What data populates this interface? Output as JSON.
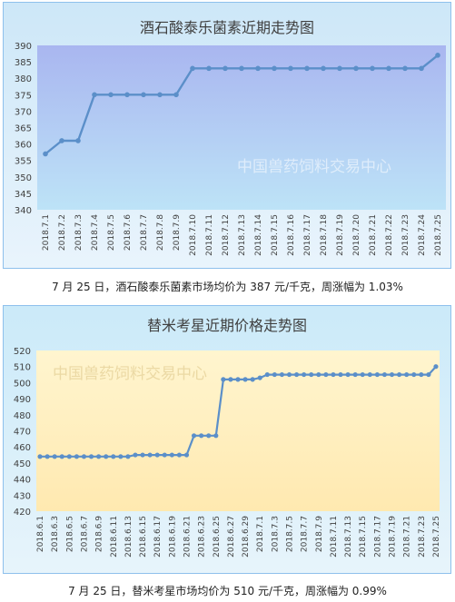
{
  "colors": {
    "line": "#5b8fc9",
    "border": "#8ec0ec",
    "watermark": "#ffffff",
    "watermark2": "#e6d29a",
    "panel1_bg_top": "#cde7f8",
    "panel1_bg_bottom": "#e9f4fc",
    "plot1_top": "#a9b6f0",
    "plot1_bottom": "#bde3f7",
    "panel2_bg_top": "#cbeaf9",
    "panel2_bg_bottom": "#e7f4fb",
    "plot2_top": "#fff5cf",
    "plot2_bottom": "#ffe9b0"
  },
  "chart_data": [
    {
      "type": "line",
      "title": "酒石酸泰乐菌素近期走势图",
      "watermark": "中国兽药饲料交易中心",
      "xlabel": "",
      "ylabel": "",
      "ylim": [
        340,
        390
      ],
      "yticks": [
        340,
        345,
        350,
        355,
        360,
        365,
        370,
        375,
        380,
        385,
        390
      ],
      "grid": false,
      "categories": [
        "2018.7.1",
        "2018.7.2",
        "2018.7.3",
        "2018.7.4",
        "2018.7.5",
        "2018.7.6",
        "2018.7.7",
        "2018.7.8",
        "2018.7.9",
        "2018.7.10",
        "2018.7.11",
        "2018.7.12",
        "2018.7.13",
        "2018.7.14",
        "2018.7.15",
        "2018.7.16",
        "2018.7.17",
        "2018.7.18",
        "2018.7.19",
        "2018.7.20",
        "2018.7.21",
        "2018.7.22",
        "2018.7.23",
        "2018.7.24",
        "2018.7.25"
      ],
      "values": [
        357,
        361,
        361,
        375,
        375,
        375,
        375,
        375,
        375,
        383,
        383,
        383,
        383,
        383,
        383,
        383,
        383,
        383,
        383,
        383,
        383,
        383,
        383,
        383,
        387
      ]
    },
    {
      "type": "line",
      "title": "替米考星近期价格走势图",
      "watermark": "中国兽药饲料交易中心",
      "xlabel": "",
      "ylabel": "",
      "ylim": [
        420,
        520
      ],
      "yticks": [
        420,
        430,
        440,
        450,
        460,
        470,
        480,
        490,
        500,
        510,
        520
      ],
      "grid": false,
      "categories": [
        "2018.6.1",
        "2018.6.2",
        "2018.6.3",
        "2018.6.4",
        "2018.6.5",
        "2018.6.6",
        "2018.6.7",
        "2018.6.8",
        "2018.6.9",
        "2018.6.10",
        "2018.6.11",
        "2018.6.12",
        "2018.6.13",
        "2018.6.14",
        "2018.6.15",
        "2018.6.16",
        "2018.6.17",
        "2018.6.18",
        "2018.6.19",
        "2018.6.20",
        "2018.6.21",
        "2018.6.22",
        "2018.6.23",
        "2018.6.24",
        "2018.6.25",
        "2018.6.26",
        "2018.6.27",
        "2018.6.28",
        "2018.6.29",
        "2018.6.30",
        "2018.7.1",
        "2018.7.2",
        "2018.7.3",
        "2018.7.4",
        "2018.7.5",
        "2018.7.6",
        "2018.7.7",
        "2018.7.8",
        "2018.7.9",
        "2018.7.10",
        "2018.7.11",
        "2018.7.12",
        "2018.7.13",
        "2018.7.14",
        "2018.7.15",
        "2018.7.16",
        "2018.7.17",
        "2018.7.18",
        "2018.7.19",
        "2018.7.20",
        "2018.7.21",
        "2018.7.22",
        "2018.7.23",
        "2018.7.24",
        "2018.7.25"
      ],
      "values": [
        454,
        454,
        454,
        454,
        454,
        454,
        454,
        454,
        454,
        454,
        454,
        454,
        454,
        455,
        455,
        455,
        455,
        455,
        455,
        455,
        455,
        467,
        467,
        467,
        467,
        502,
        502,
        502,
        502,
        502,
        503,
        505,
        505,
        505,
        505,
        505,
        505,
        505,
        505,
        505,
        505,
        505,
        505,
        505,
        505,
        505,
        505,
        505,
        505,
        505,
        505,
        505,
        505,
        505,
        510
      ]
    }
  ],
  "captions": {
    "cap1": "7 月 25 日，酒石酸泰乐菌素市场均价为 387 元/千克，周涨幅为 1.03%",
    "cap2": "7 月 25 日，替米考星市场均价为 510 元/千克，周涨幅为 0.99%"
  }
}
